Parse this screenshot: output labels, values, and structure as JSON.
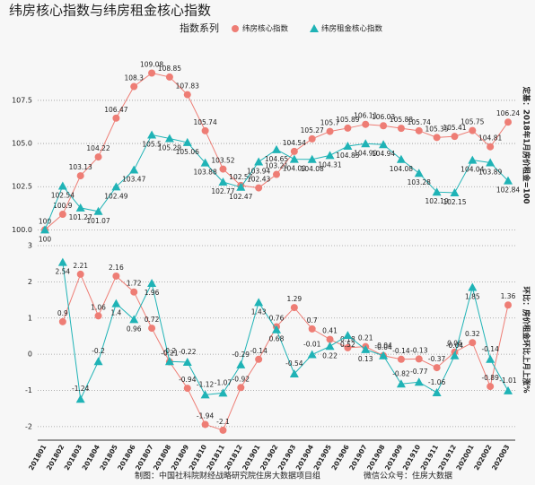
{
  "chart_data": [
    {
      "type": "line",
      "title": "纬房核心指数与纬房租金核心指数",
      "legend_title": "指数系列",
      "legend": "top",
      "y_label": "定基：2018年1月房价租金=100",
      "ylim": [
        99.5,
        110.3
      ],
      "yticks": [
        {
          "value": 100,
          "label": "100.0"
        },
        {
          "value": 102.5,
          "label": "102.5"
        },
        {
          "value": 105,
          "label": "105.0"
        },
        {
          "value": 107.5,
          "label": "107.5"
        }
      ],
      "grid": true,
      "series": [
        {
          "name": "纬房核心指数",
          "color": "#ee7d75",
          "marker": "circle",
          "values": [
            100,
            100.9,
            103.13,
            104.22,
            106.47,
            108.3,
            109.08,
            108.85,
            107.83,
            105.74,
            103.52,
            102.57,
            102.43,
            103.21,
            104.54,
            105.27,
            105.7,
            105.89,
            106.11,
            106.03,
            105.88,
            105.74,
            105.35,
            105.41,
            105.75,
            104.81,
            106.24
          ]
        },
        {
          "name": "纬房租金核心指数",
          "color": "#1fb3b6",
          "marker": "triangle",
          "values": [
            100,
            102.54,
            101.27,
            101.07,
            102.49,
            103.47,
            105.5,
            105.29,
            105.06,
            103.88,
            102.77,
            102.47,
            103.94,
            104.65,
            104.09,
            104.08,
            104.31,
            104.85,
            104.99,
            104.94,
            104.08,
            103.28,
            102.19,
            102.15,
            104.04,
            103.89,
            102.84
          ]
        }
      ]
    },
    {
      "type": "line",
      "y_label": "环比：房价租金环比上月上涨%",
      "categories": [
        "201801",
        "201802",
        "201803",
        "201804",
        "201805",
        "201806",
        "201807",
        "201808",
        "201809",
        "201810",
        "201811",
        "201812",
        "201901",
        "201902",
        "201903",
        "201904",
        "201905",
        "201906",
        "201907",
        "201908",
        "201909",
        "201910",
        "201911",
        "201912",
        "202001",
        "202002",
        "202003"
      ],
      "ylim": [
        -2.3,
        3.1
      ],
      "yticks": [
        -2,
        -1,
        0,
        1,
        2,
        3
      ],
      "grid": true,
      "series": [
        {
          "name": "纬房核心指数",
          "color": "#ee7d75",
          "marker": "circle",
          "values": [
            null,
            0.9,
            2.21,
            1.06,
            2.16,
            1.72,
            0.72,
            -0.21,
            -0.94,
            -1.94,
            -2.1,
            -0.92,
            -0.14,
            0.76,
            1.29,
            0.7,
            0.41,
            0.18,
            0.21,
            -0.04,
            -0.14,
            -0.13,
            -0.37,
            0.06,
            0.32,
            -0.89,
            1.36
          ]
        },
        {
          "name": "纬房租金核心指数",
          "color": "#1fb3b6",
          "marker": "triangle",
          "values": [
            null,
            2.54,
            -1.24,
            -0.2,
            1.4,
            0.96,
            1.96,
            -0.2,
            -0.22,
            -1.12,
            -1.07,
            -0.29,
            1.43,
            0.68,
            -0.54,
            -0.01,
            0.22,
            0.52,
            0.13,
            -0.04,
            -0.82,
            -0.77,
            -1.06,
            -0.04,
            1.85,
            -0.14,
            -1.01
          ]
        }
      ]
    }
  ],
  "footer": {
    "left": "制图：中国社科院财经战略研究院住房大数据项目组",
    "right": "微信公众号：住房大数据"
  }
}
